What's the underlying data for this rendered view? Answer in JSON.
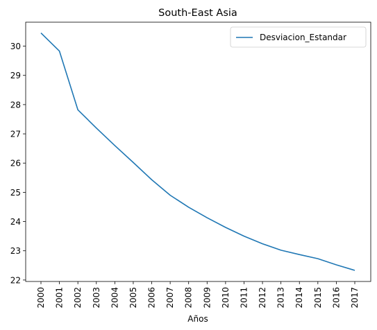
{
  "chart_data": {
    "type": "line",
    "title": "South-East Asia",
    "xlabel": "Años",
    "ylabel": "",
    "x": [
      "2000",
      "2001",
      "2002",
      "2003",
      "2004",
      "2005",
      "2006",
      "2007",
      "2008",
      "2009",
      "2010",
      "2011",
      "2012",
      "2013",
      "2014",
      "2015",
      "2016",
      "2017"
    ],
    "series": [
      {
        "name": "Desviacion_Estandar",
        "color": "#1f77b4",
        "values": [
          30.45,
          29.83,
          27.82,
          27.2,
          26.6,
          26.02,
          25.43,
          24.9,
          24.49,
          24.13,
          23.8,
          23.5,
          23.24,
          23.02,
          22.87,
          22.73,
          22.52,
          22.33
        ]
      }
    ],
    "ylim": [
      21.95,
      30.82
    ],
    "yticks": [
      22,
      23,
      24,
      25,
      26,
      27,
      28,
      29,
      30
    ],
    "grid": false,
    "legend_position": "top-right"
  }
}
